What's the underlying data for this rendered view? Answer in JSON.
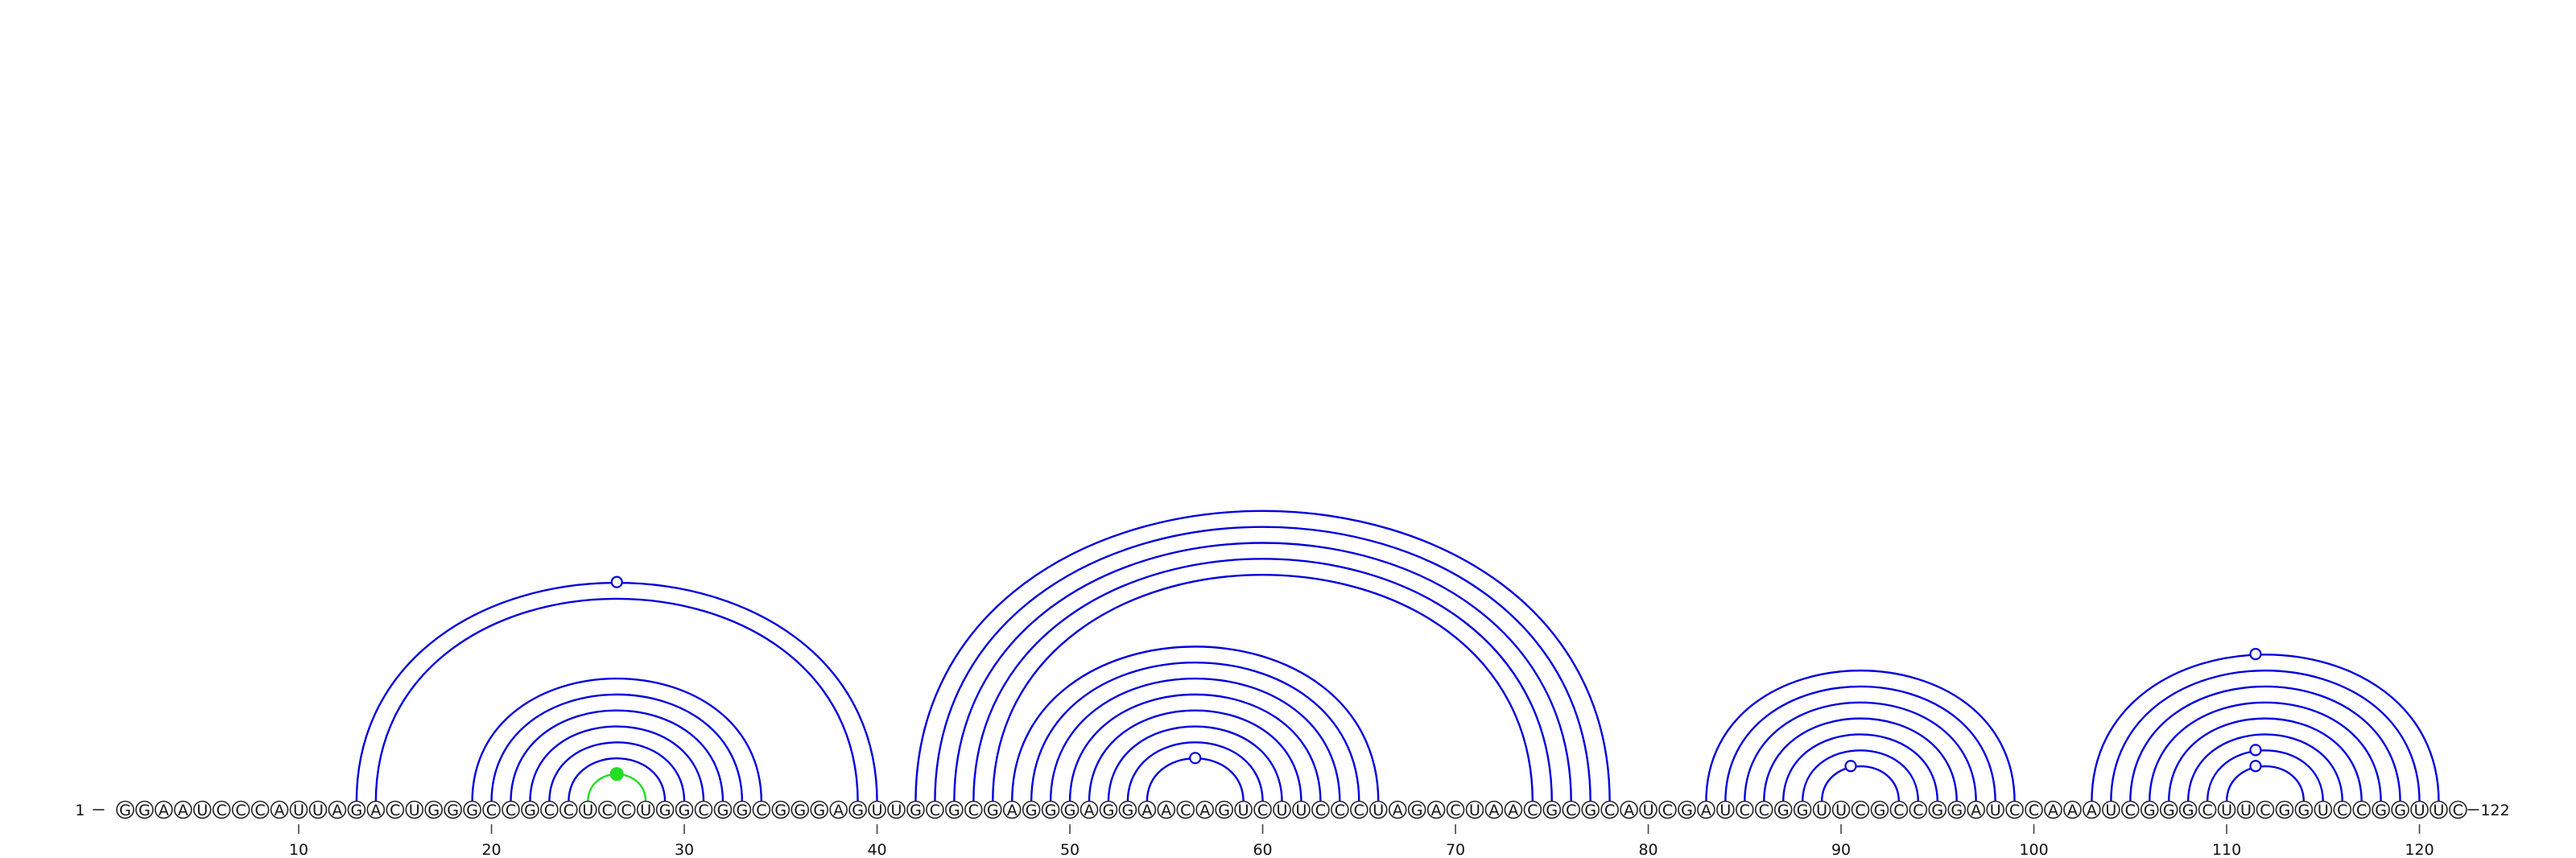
{
  "diagram": {
    "type": "rna-arc-diagram",
    "sequence": "GGAAUCCCAUUAGACUGGGCCGCCUCCUGGCGGCGGGAGUUGCGCGAGGGAGGAACAGUCUUCCCUAGACUAACGCGCAUCGAUCCGGUUCGCCGGAUCCAAAUCGGGCUUCGGUCCGGUUC",
    "start_label": "1",
    "end_label": "122",
    "ticks": [
      10,
      20,
      30,
      40,
      50,
      60,
      70,
      80,
      90,
      100,
      110,
      120
    ],
    "colors": {
      "pair": "#0000dd",
      "highlight": "#22dd22"
    },
    "pairs": [
      [
        13,
        40
      ],
      [
        14,
        39
      ],
      [
        19,
        34
      ],
      [
        20,
        33
      ],
      [
        21,
        32
      ],
      [
        22,
        31
      ],
      [
        23,
        30
      ],
      [
        24,
        29
      ],
      [
        42,
        78
      ],
      [
        43,
        77
      ],
      [
        44,
        76
      ],
      [
        45,
        75
      ],
      [
        46,
        74
      ],
      [
        47,
        66
      ],
      [
        48,
        65
      ],
      [
        49,
        64
      ],
      [
        50,
        63
      ],
      [
        51,
        62
      ],
      [
        52,
        61
      ],
      [
        53,
        60
      ],
      [
        54,
        59
      ],
      [
        83,
        99
      ],
      [
        84,
        98
      ],
      [
        85,
        97
      ],
      [
        86,
        96
      ],
      [
        87,
        95
      ],
      [
        88,
        94
      ],
      [
        89,
        93
      ],
      [
        103,
        121
      ],
      [
        104,
        120
      ],
      [
        105,
        119
      ],
      [
        106,
        118
      ],
      [
        107,
        117
      ],
      [
        108,
        116
      ],
      [
        109,
        115
      ],
      [
        110,
        114
      ]
    ],
    "highlight_pairs": [
      [
        25,
        28
      ]
    ],
    "loop_markers": [
      {
        "pos": 26.5,
        "height_of_pair": [
          13,
          40
        ],
        "style": "open"
      },
      {
        "pos": 56.5,
        "height_of_pair": [
          54,
          59
        ],
        "style": "open"
      },
      {
        "pos": 90.5,
        "height_of_pair": [
          89,
          93
        ],
        "style": "open"
      },
      {
        "pos": 111.5,
        "height_of_pair": [
          103,
          121
        ],
        "style": "open"
      },
      {
        "pos": 111.5,
        "height_of_pair": [
          109,
          115
        ],
        "style": "open"
      },
      {
        "pos": 111.5,
        "height_of_pair": [
          110,
          114
        ],
        "style": "open"
      },
      {
        "pos": 26.5,
        "height_of_pair": [
          25,
          28
        ],
        "style": "filled-highlight"
      }
    ]
  }
}
